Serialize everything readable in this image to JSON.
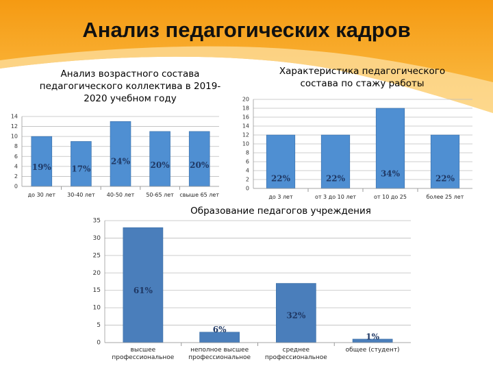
{
  "title": "Анализ педагогических кадров",
  "chart_data": [
    {
      "type": "bar",
      "title": "Анализ возрастного состава педагогического коллектива в 2019-2020 учебном году",
      "categories": [
        "до 30 лет",
        "30-40 лет",
        "40-50 лет",
        "50-65 лет",
        "свыше 65 лет"
      ],
      "values": [
        10,
        9,
        13,
        11,
        11
      ],
      "annotations": [
        "19%",
        "17%",
        "24%",
        "20%",
        "20%"
      ],
      "color": "#4f8fd2",
      "ylim": [
        0,
        14
      ],
      "yticks": [
        0,
        2,
        4,
        6,
        8,
        10,
        12,
        14
      ],
      "grid": true
    },
    {
      "type": "bar",
      "title": "Характеристика педагогического состава по стажу работы",
      "categories": [
        "до 3 лет",
        "от 3 до 10 лет",
        "от 10 до 25",
        "более 25 лет"
      ],
      "values": [
        12,
        12,
        18,
        12
      ],
      "annotations": [
        "22%",
        "22%",
        "34%",
        "22%"
      ],
      "color": "#4f8fd2",
      "ylim": [
        0,
        20
      ],
      "yticks": [
        0,
        2,
        4,
        6,
        8,
        10,
        12,
        14,
        16,
        18,
        20
      ],
      "grid": true
    },
    {
      "type": "bar",
      "title": "Образование педагогов учреждения",
      "categories": [
        "высшее профессиональное",
        "неполное высшее профессиональное",
        "среднее профессиональное",
        "общее (студент)"
      ],
      "values": [
        33,
        3,
        17,
        1
      ],
      "annotations": [
        "61%",
        "6%",
        "32%",
        "1%"
      ],
      "color": "#4a7ebb",
      "ylim": [
        0,
        35
      ],
      "yticks": [
        0,
        5,
        10,
        15,
        20,
        25,
        30,
        35
      ],
      "grid": true
    }
  ]
}
